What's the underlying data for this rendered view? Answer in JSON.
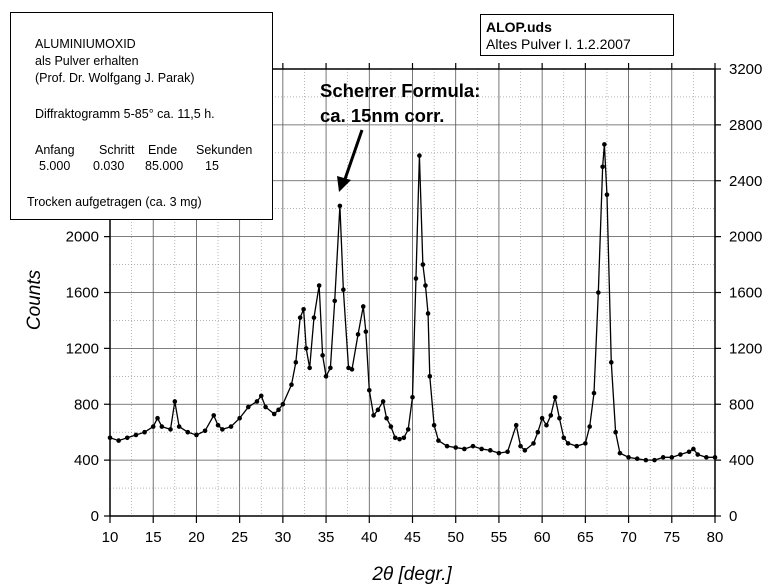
{
  "chart_data": {
    "type": "line",
    "title": "",
    "xlabel": "2θ  [degr.]",
    "ylabel": "Counts",
    "xlim": [
      10,
      80
    ],
    "ylim": [
      0,
      3200
    ],
    "x_ticks": [
      10,
      15,
      20,
      25,
      30,
      35,
      40,
      45,
      50,
      55,
      60,
      65,
      70,
      75,
      80
    ],
    "y_ticks_left": [
      0,
      400,
      800,
      1200,
      1600,
      2000
    ],
    "y_ticks_right": [
      0,
      400,
      800,
      1200,
      1600,
      2000,
      2400,
      2800,
      3200
    ],
    "grid": true,
    "marker": "filled-circle",
    "series": [
      {
        "x": [
          10,
          11,
          12,
          13,
          14,
          15,
          15.5,
          16,
          17,
          17.5,
          18,
          19,
          20,
          21,
          22,
          22.5,
          23,
          24,
          25,
          26,
          27,
          27.5,
          28,
          29,
          29.5,
          30,
          31,
          31.5,
          32,
          32.4,
          32.7,
          33.1,
          33.6,
          34.2,
          34.6,
          35,
          35.5,
          36,
          36.6,
          37,
          37.6,
          38,
          38.7,
          39.3,
          39.6,
          40,
          40.5,
          41,
          41.6,
          42,
          42.5,
          43,
          43.5,
          44,
          44.5,
          45,
          45.4,
          45.8,
          46.2,
          46.5,
          46.8,
          47,
          47.5,
          48,
          49,
          50,
          51,
          52,
          53,
          54,
          55,
          56,
          57,
          57.5,
          58,
          59,
          59.5,
          60,
          60.5,
          61,
          61.5,
          62,
          62.5,
          63,
          64,
          65,
          65.5,
          66,
          66.5,
          67,
          67.2,
          67.5,
          68,
          68.5,
          69,
          70,
          71,
          72,
          73,
          74,
          75,
          76,
          77,
          77.5,
          78,
          79,
          80
        ],
        "y": [
          560,
          540,
          560,
          580,
          600,
          640,
          700,
          640,
          620,
          820,
          640,
          600,
          580,
          610,
          720,
          650,
          620,
          640,
          700,
          780,
          820,
          860,
          780,
          730,
          760,
          800,
          940,
          1100,
          1420,
          1480,
          1200,
          1060,
          1420,
          1650,
          1150,
          1000,
          1060,
          1540,
          2220,
          1620,
          1060,
          1050,
          1300,
          1500,
          1320,
          900,
          720,
          760,
          820,
          700,
          640,
          560,
          550,
          560,
          620,
          850,
          1700,
          2580,
          1800,
          1650,
          1450,
          1000,
          650,
          540,
          500,
          490,
          480,
          500,
          480,
          470,
          450,
          460,
          650,
          500,
          470,
          520,
          600,
          700,
          650,
          720,
          850,
          700,
          560,
          520,
          500,
          520,
          640,
          880,
          1600,
          2500,
          2660,
          2300,
          1100,
          600,
          450,
          420,
          410,
          400,
          400,
          420,
          420,
          440,
          460,
          480,
          440,
          420,
          420
        ]
      }
    ],
    "annotations": {
      "scherrer_line1": "Scherrer Formula:",
      "scherrer_line2": "ca. 15nm corr."
    },
    "info_box": {
      "line1": "ALUMINIUMOXID",
      "line2": "als Pulver erhalten",
      "line3": "(Prof. Dr. Wolfgang J. Parak)",
      "line4": "Diffraktogramm 5-85° ca. 11,5 h.",
      "col_headers": [
        "Anfang",
        "Schritt",
        "Ende",
        "Sekunden"
      ],
      "col_values": [
        "5.000",
        "0.030",
        "85.000",
        "15"
      ],
      "line7": "Trocken aufgetragen (ca. 3 mg)"
    },
    "file_box": {
      "name": "ALOP.uds",
      "desc": "Altes Pulver I.  1.2.2007"
    }
  }
}
